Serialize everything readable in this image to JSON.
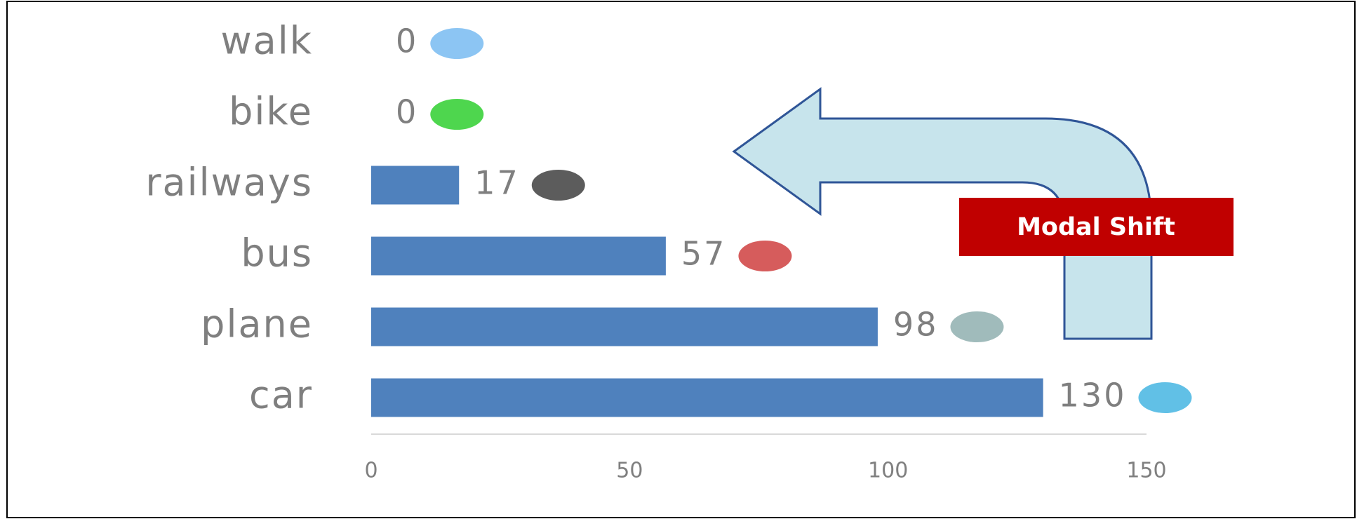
{
  "chart_data": {
    "type": "barh",
    "categories": [
      "walk",
      "bike",
      "railways",
      "bus",
      "plane",
      "car"
    ],
    "values": [
      0,
      0,
      17,
      57,
      98,
      130
    ],
    "color": "#4f81bd",
    "xlim": [
      0,
      150
    ],
    "xticks": [
      0,
      50,
      100,
      150
    ],
    "annotation": "Modal Shift"
  }
}
